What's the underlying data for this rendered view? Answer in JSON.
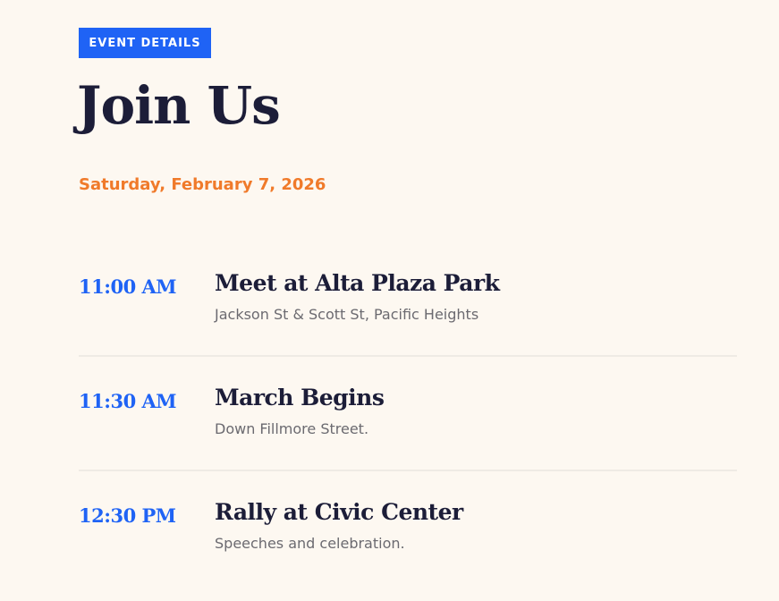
{
  "badge": "EVENT DETAILS",
  "title": "Join Us",
  "date": "Saturday, February 7, 2026",
  "schedule": [
    {
      "time": "11:00 AM",
      "name": "Meet at Alta Plaza Park",
      "desc": "Jackson St & Scott St, Pacific Heights"
    },
    {
      "time": "11:30 AM",
      "name": "March Begins",
      "desc": "Down Fillmore Street."
    },
    {
      "time": "12:30 PM",
      "name": "Rally at Civic Center",
      "desc": "Speeches and celebration."
    }
  ],
  "colors": {
    "accent": "#1f63f5",
    "date": "#f07a2a",
    "heading": "#1c1d38",
    "background": "#fdf8f1"
  }
}
